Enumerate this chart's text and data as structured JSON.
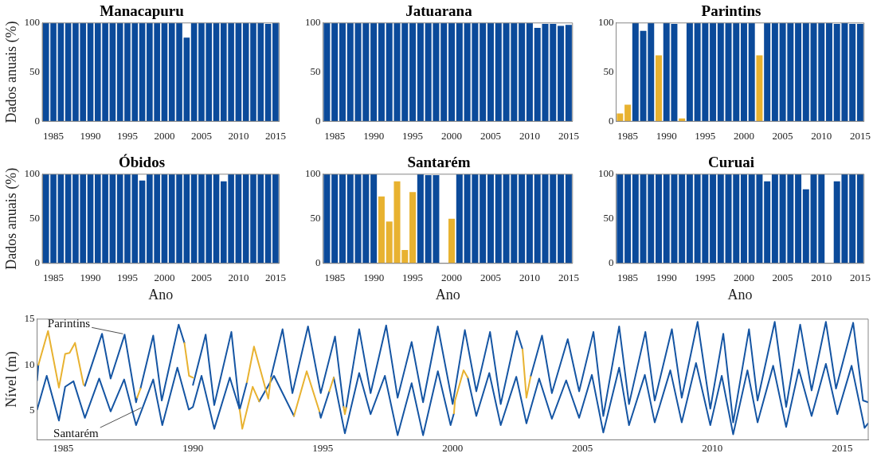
{
  "chart_data": [
    {
      "type": "bar",
      "title": "Manacapuru",
      "ylabel": "Dados anuais (%)",
      "categories": [
        null,
        "1985",
        null,
        null,
        null,
        null,
        "1990",
        null,
        null,
        null,
        null,
        "1995",
        null,
        null,
        null,
        null,
        "2000",
        null,
        null,
        null,
        null,
        "2005",
        null,
        null,
        null,
        null,
        "2010",
        null,
        null,
        null,
        null,
        "2015"
      ],
      "values": [
        100,
        100,
        100,
        100,
        100,
        100,
        100,
        100,
        100,
        100,
        100,
        100,
        100,
        100,
        100,
        100,
        100,
        100,
        100,
        85,
        100,
        100,
        100,
        100,
        100,
        100,
        100,
        100,
        100,
        100,
        99,
        100
      ],
      "color": "#0b4a9a",
      "ylim": [
        0,
        100
      ],
      "yticks": [
        0,
        50,
        100
      ]
    },
    {
      "type": "bar",
      "title": "Jatuarana",
      "categories": [
        null,
        "1985",
        null,
        null,
        null,
        null,
        "1990",
        null,
        null,
        null,
        null,
        "1995",
        null,
        null,
        null,
        null,
        "2000",
        null,
        null,
        null,
        null,
        "2005",
        null,
        null,
        null,
        null,
        "2010",
        null,
        null,
        null,
        null,
        "2015"
      ],
      "values": [
        100,
        100,
        100,
        100,
        100,
        100,
        100,
        100,
        100,
        100,
        100,
        100,
        100,
        100,
        100,
        100,
        100,
        100,
        100,
        100,
        100,
        100,
        100,
        100,
        100,
        100,
        100,
        95,
        99,
        99,
        97,
        98
      ],
      "color": "#0b4a9a",
      "ylim": [
        0,
        100
      ],
      "yticks": [
        0,
        50,
        100
      ]
    },
    {
      "type": "bar",
      "title": "Parintins",
      "categories": [
        null,
        "1985",
        null,
        null,
        null,
        null,
        "1990",
        null,
        null,
        null,
        null,
        "1995",
        null,
        null,
        null,
        null,
        "2000",
        null,
        null,
        null,
        null,
        "2005",
        null,
        null,
        null,
        null,
        "2010",
        null,
        null,
        null,
        null,
        "2015"
      ],
      "values": [
        8,
        17,
        100,
        92,
        100,
        67,
        100,
        99,
        3,
        100,
        100,
        100,
        100,
        100,
        100,
        100,
        100,
        100,
        67,
        100,
        100,
        100,
        100,
        100,
        100,
        100,
        100,
        100,
        99,
        100,
        99,
        99
      ],
      "colors": [
        "#e8b230",
        "#e8b230",
        "#0b4a9a",
        "#0b4a9a",
        "#0b4a9a",
        "#e8b230",
        "#0b4a9a",
        "#0b4a9a",
        "#e8b230",
        "#0b4a9a",
        "#0b4a9a",
        "#0b4a9a",
        "#0b4a9a",
        "#0b4a9a",
        "#0b4a9a",
        "#0b4a9a",
        "#0b4a9a",
        "#0b4a9a",
        "#e8b230",
        "#0b4a9a",
        "#0b4a9a",
        "#0b4a9a",
        "#0b4a9a",
        "#0b4a9a",
        "#0b4a9a",
        "#0b4a9a",
        "#0b4a9a",
        "#0b4a9a",
        "#0b4a9a",
        "#0b4a9a",
        "#0b4a9a",
        "#0b4a9a"
      ],
      "ylim": [
        0,
        100
      ],
      "yticks": [
        0,
        50,
        100
      ]
    },
    {
      "type": "bar",
      "title": "Óbidos",
      "ylabel": "Dados anuais (%)",
      "xlabel": "Ano",
      "categories": [
        null,
        "1985",
        null,
        null,
        null,
        null,
        "1990",
        null,
        null,
        null,
        null,
        "1995",
        null,
        null,
        null,
        null,
        "2000",
        null,
        null,
        null,
        null,
        "2005",
        null,
        null,
        null,
        null,
        "2010",
        null,
        null,
        null,
        null,
        "2015"
      ],
      "values": [
        100,
        100,
        100,
        100,
        100,
        100,
        100,
        100,
        100,
        100,
        100,
        100,
        100,
        93,
        100,
        100,
        100,
        100,
        100,
        100,
        100,
        100,
        100,
        100,
        92,
        100,
        100,
        100,
        100,
        100,
        100,
        100
      ],
      "color": "#0b4a9a",
      "ylim": [
        0,
        100
      ],
      "yticks": [
        0,
        50,
        100
      ]
    },
    {
      "type": "bar",
      "title": "Santarém",
      "xlabel": "Ano",
      "categories": [
        null,
        "1985",
        null,
        null,
        null,
        null,
        "1990",
        null,
        null,
        null,
        null,
        "1995",
        null,
        null,
        null,
        null,
        "2000",
        null,
        null,
        null,
        null,
        "2005",
        null,
        null,
        null,
        null,
        "2010",
        null,
        null,
        null,
        null,
        "2015"
      ],
      "values": [
        100,
        100,
        100,
        100,
        100,
        100,
        100,
        75,
        47,
        92,
        15,
        80,
        100,
        99,
        99,
        null,
        50,
        100,
        100,
        100,
        100,
        100,
        100,
        100,
        100,
        100,
        100,
        100,
        100,
        100,
        100,
        100
      ],
      "colors": [
        "#0b4a9a",
        "#0b4a9a",
        "#0b4a9a",
        "#0b4a9a",
        "#0b4a9a",
        "#0b4a9a",
        "#0b4a9a",
        "#e8b230",
        "#e8b230",
        "#e8b230",
        "#e8b230",
        "#e8b230",
        "#0b4a9a",
        "#0b4a9a",
        "#0b4a9a",
        "#0b4a9a",
        "#e8b230",
        "#0b4a9a",
        "#0b4a9a",
        "#0b4a9a",
        "#0b4a9a",
        "#0b4a9a",
        "#0b4a9a",
        "#0b4a9a",
        "#0b4a9a",
        "#0b4a9a",
        "#0b4a9a",
        "#0b4a9a",
        "#0b4a9a",
        "#0b4a9a",
        "#0b4a9a",
        "#0b4a9a"
      ],
      "ylim": [
        0,
        100
      ],
      "yticks": [
        0,
        50,
        100
      ]
    },
    {
      "type": "bar",
      "title": "Curuai",
      "xlabel": "Ano",
      "categories": [
        null,
        "1985",
        null,
        null,
        null,
        null,
        "1990",
        null,
        null,
        null,
        null,
        "1995",
        null,
        null,
        null,
        null,
        "2000",
        null,
        null,
        null,
        null,
        "2005",
        null,
        null,
        null,
        null,
        "2010",
        null,
        null,
        null,
        null,
        "2015"
      ],
      "values": [
        100,
        100,
        100,
        100,
        100,
        100,
        100,
        100,
        100,
        100,
        100,
        100,
        100,
        100,
        100,
        100,
        100,
        100,
        100,
        92,
        100,
        100,
        100,
        100,
        83,
        100,
        100,
        null,
        92,
        100,
        100,
        100
      ],
      "color": "#0b4a9a",
      "ylim": [
        0,
        100
      ],
      "yticks": [
        0,
        50,
        100
      ]
    },
    {
      "type": "line",
      "ylabel": "Nível (m)",
      "xlim": [
        1984,
        2016
      ],
      "xticks": [
        1985,
        1990,
        1995,
        2000,
        2005,
        2010,
        2015
      ],
      "ylim": [
        1.8,
        15
      ],
      "yticks": [
        5,
        10,
        15
      ],
      "series": [
        {
          "name": "Parintins",
          "color": "#1555a3",
          "x": [
            1984.0,
            1984.05,
            1984.1,
            1985.84,
            1986.5,
            1986.83,
            1987.37,
            1987.81,
            1987.85,
            1987.9,
            1987.98,
            1988.47,
            1988.8,
            1989.45,
            1989.67,
            1989.8,
            1990.0,
            1990.49,
            1990.82,
            1991.48,
            1991.8,
            1992.08,
            1992.5,
            1993.0,
            1993.45,
            1993.83,
            1994.43,
            1994.92,
            1995.47,
            1995.8,
            1995.85,
            1995.9,
            1996.4,
            1996.84,
            1997.44,
            1997.88,
            1998.42,
            1998.86,
            1999.43,
            2000.0,
            2000.47,
            2000.91,
            2001.44,
            2001.85,
            2002.47,
            2002.69,
            2002.8,
            2003.0,
            2003.44,
            2003.82,
            2004.43,
            2004.87,
            2005.42,
            2005.8,
            2006.41,
            2006.79,
            2007.42,
            2007.78,
            2008.44,
            2008.82,
            2009.43,
            2009.92,
            2010.42,
            2010.8,
            2011.41,
            2011.74,
            2012.4,
            2012.84,
            2013.38,
            2013.82,
            2014.37,
            2014.76,
            2015.42,
            2015.8,
            2016.0
          ],
          "values": [
            8.3,
            10,
            null,
            7.7,
            13.4,
            8.5,
            13.3,
            5.9,
            6.4,
            null,
            7.4,
            13.2,
            6.1,
            14.4,
            12.4,
            null,
            7.8,
            13.3,
            5.6,
            13.6,
            5.1,
            8.1,
            null,
            8.6,
            13.9,
            6.9,
            14.2,
            6.9,
            13.1,
            5.4,
            null,
            5.3,
            13.9,
            6.9,
            14.3,
            6.4,
            12.5,
            5.9,
            14.2,
            5.7,
            13.8,
            7.1,
            13.6,
            5.7,
            13.7,
            11.7,
            null,
            8.7,
            13.2,
            6.9,
            12.8,
            7.1,
            13.6,
            4.4,
            14.2,
            5.7,
            13.6,
            6.1,
            13.9,
            6.4,
            14.7,
            5.2,
            13.4,
            3.7,
            13.9,
            6.1,
            14.7,
            5.4,
            14.4,
            7.2,
            14.7,
            7.4,
            14.6,
            6.1,
            5.9
          ]
        },
        {
          "name": "Santarém",
          "color": "#1555a3",
          "x": [
            1984.0,
            1984.37,
            1984.84,
            1985.08,
            1985.4,
            1985.84,
            1986.39,
            1986.83,
            1987.35,
            1987.81,
            1988.47,
            1988.82,
            1989.4,
            1989.84,
            1990.0,
            1990.33,
            1990.82,
            1991.42,
            1991.8,
            1992.0,
            1992.55,
            1993.12,
            1993.89,
            1994.0,
            1994.87,
            1994.92,
            1995.25,
            1995.3,
            1995.42,
            1995.85,
            1996.4,
            1996.84,
            1997.39,
            1997.88,
            1998.42,
            1998.86,
            1999.43,
            1999.92,
            2000.05,
            2000.07,
            2000.58,
            2000.91,
            2001.41,
            2001.85,
            2002.45,
            2002.84,
            2003.33,
            2003.82,
            2004.37,
            2004.87,
            2005.36,
            2005.8,
            2006.41,
            2006.79,
            2007.4,
            2007.78,
            2008.38,
            2008.82,
            2009.37,
            2009.92,
            2010.36,
            2010.8,
            2011.35,
            2011.74,
            2012.34,
            2012.84,
            2013.33,
            2013.82,
            2014.37,
            2014.81,
            2015.36,
            2015.86,
            2016.0
          ],
          "values": [
            5.1,
            8.8,
            3.9,
            7.6,
            8.2,
            4.2,
            8.5,
            4.9,
            8.4,
            3.4,
            8.4,
            3.4,
            9.7,
            5.1,
            5.4,
            8.8,
            3.0,
            8.6,
            5.1,
            null,
            6.0,
            8.8,
            4.4,
            null,
            4.9,
            4.2,
            7.1,
            null,
            8.6,
            2.5,
            9.1,
            4.6,
            8.8,
            2.3,
            8.0,
            2.3,
            9.3,
            3.4,
            4.7,
            null,
            8.6,
            4.4,
            9.1,
            3.4,
            8.7,
            3.6,
            8.5,
            4.1,
            8.3,
            4.2,
            8.9,
            2.6,
            9.7,
            3.4,
            8.9,
            3.7,
            9.4,
            3.7,
            10.2,
            3.4,
            8.8,
            2.4,
            9.4,
            3.7,
            9.9,
            3.2,
            9.5,
            4.4,
            10.1,
            4.6,
            9.9,
            3.1,
            3.6
          ]
        },
        {
          "color": "#e8b230",
          "x": [
            1984.05,
            1984.42,
            1984.84,
            1985.08,
            1985.25,
            1985.46,
            1985.79,
            1985.82,
            1987.85,
            1987.98,
            1988.2,
            1989.67,
            1989.85,
            1990.0,
            1990.5,
            1992.08,
            1992.35,
            1992.9,
            1993.0,
            1993.2,
            1995.8,
            1995.85,
            1995.9,
            2000.0,
            2002.69,
            2002.84,
            2003.0
          ],
          "values": [
            10,
            13.7,
            7.5,
            11.2,
            11.3,
            12.4,
            7.8,
            null,
            6.4,
            7.4,
            null,
            12.4,
            8.8,
            8.6,
            null,
            8.1,
            12.0,
            6.3,
            8.6,
            null,
            5.4,
            4.6,
            5.3,
            null,
            11.7,
            6.4,
            8.7
          ]
        },
        {
          "color": "#e8b230",
          "x": [
            1991.8,
            1991.9,
            1992.3,
            1992.55,
            1993.0,
            1993.89,
            1994.38,
            1994.87,
            1995.0,
            1995.25,
            1995.42,
            1996.0,
            2000.05,
            2000.09,
            2000.42,
            2000.58
          ],
          "values": [
            5.1,
            3.0,
            7.6,
            6.0,
            null,
            4.4,
            9.3,
            4.9,
            null,
            7.1,
            8.6,
            null,
            4.7,
            6.1,
            9.4,
            8.6
          ]
        }
      ]
    }
  ]
}
